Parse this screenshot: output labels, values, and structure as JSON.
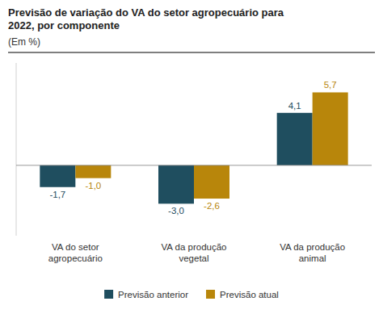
{
  "chart_data": {
    "type": "bar",
    "title": "Previsão de variação do VA do setor agropecuário para\n2022, por componente",
    "subtitle": "(Em %)",
    "categories": [
      "VA do setor\nagropecuário",
      "VA da produção\nvegetal",
      "VA da produção\nanimal"
    ],
    "series": [
      {
        "name": "Previsão anterior",
        "color": "#1f4e5f",
        "values": [
          -1.7,
          -3.0,
          4.1
        ],
        "value_labels": [
          "-1,7",
          "-3,0",
          "4,1"
        ]
      },
      {
        "name": "Previsão atual",
        "color": "#b8860b",
        "values": [
          -1.0,
          -2.6,
          5.7
        ],
        "value_labels": [
          "-1,0",
          "-2,6",
          "5,7"
        ]
      }
    ],
    "ylim": [
      -5.5,
      8.0
    ],
    "grid": false,
    "legend": "bottom",
    "data_labels": true,
    "tick_labels": "x"
  }
}
